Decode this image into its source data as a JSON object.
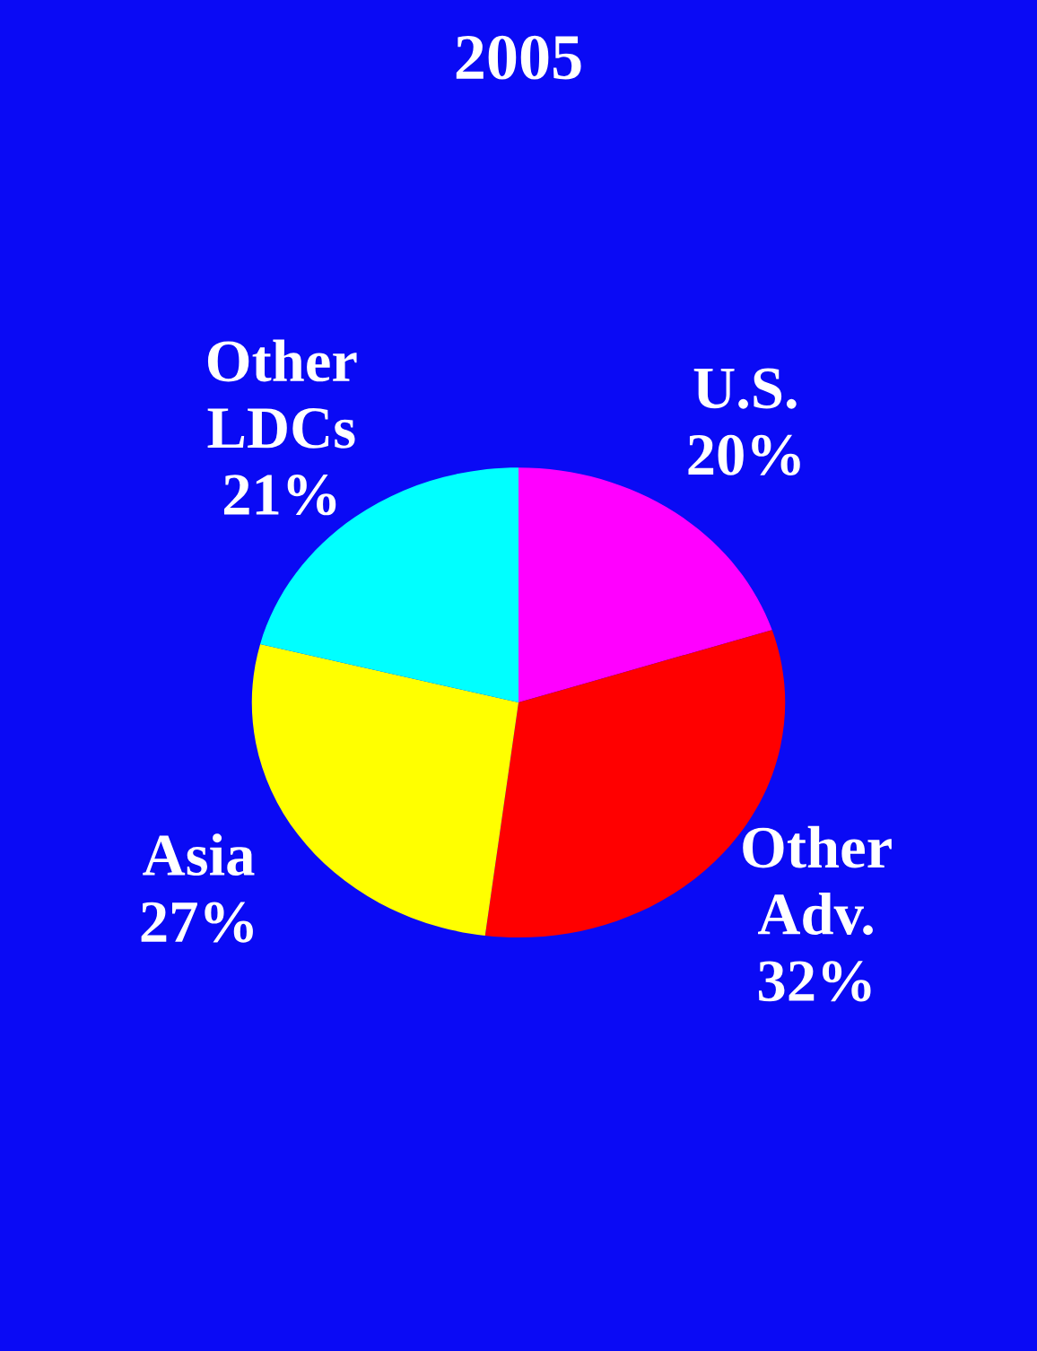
{
  "chart_data": {
    "type": "pie",
    "title": "2005",
    "categories": [
      "U.S.",
      "Other Adv.",
      "Asia",
      "Other LDCs"
    ],
    "values": [
      20,
      32,
      27,
      21
    ],
    "value_labels": [
      "20%",
      "32%",
      "27%",
      "21%"
    ],
    "colors": [
      "#ff00ff",
      "#ff0000",
      "#ffff00",
      "#00ffff"
    ]
  }
}
